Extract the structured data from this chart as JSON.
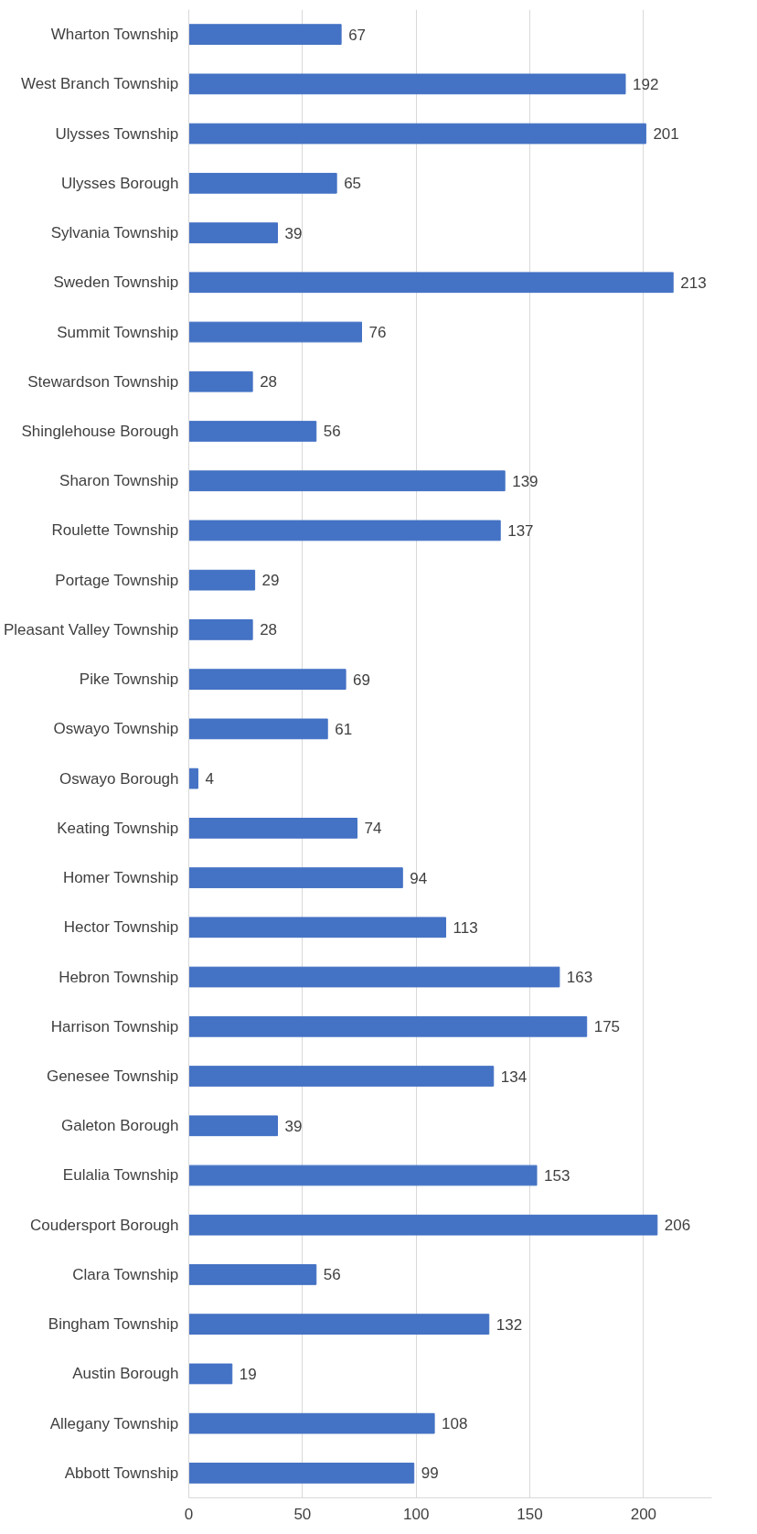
{
  "chart_data": {
    "type": "bar",
    "orientation": "horizontal",
    "categories": [
      "Wharton Township",
      "West Branch Township",
      "Ulysses Township",
      "Ulysses Borough",
      "Sylvania Township",
      "Sweden Township",
      "Summit Township",
      "Stewardson Township",
      "Shinglehouse Borough",
      "Sharon Township",
      "Roulette Township",
      "Portage Township",
      "Pleasant Valley Township",
      "Pike Township",
      "Oswayo Township",
      "Oswayo Borough",
      "Keating Township",
      "Homer Township",
      "Hector Township",
      "Hebron Township",
      "Harrison Township",
      "Genesee Township",
      "Galeton Borough",
      "Eulalia Township",
      "Coudersport Borough",
      "Clara Township",
      "Bingham Township",
      "Austin Borough",
      "Allegany Township",
      "Abbott Township"
    ],
    "values": [
      67,
      192,
      201,
      65,
      39,
      213,
      76,
      28,
      56,
      139,
      137,
      29,
      28,
      69,
      61,
      4,
      74,
      94,
      113,
      163,
      175,
      134,
      39,
      153,
      206,
      56,
      132,
      19,
      108,
      99
    ],
    "color": "#4472c4",
    "xlim": [
      0,
      230
    ],
    "xticks": [
      0,
      50,
      100,
      150,
      200
    ],
    "grid": "x",
    "data_labels": true
  }
}
